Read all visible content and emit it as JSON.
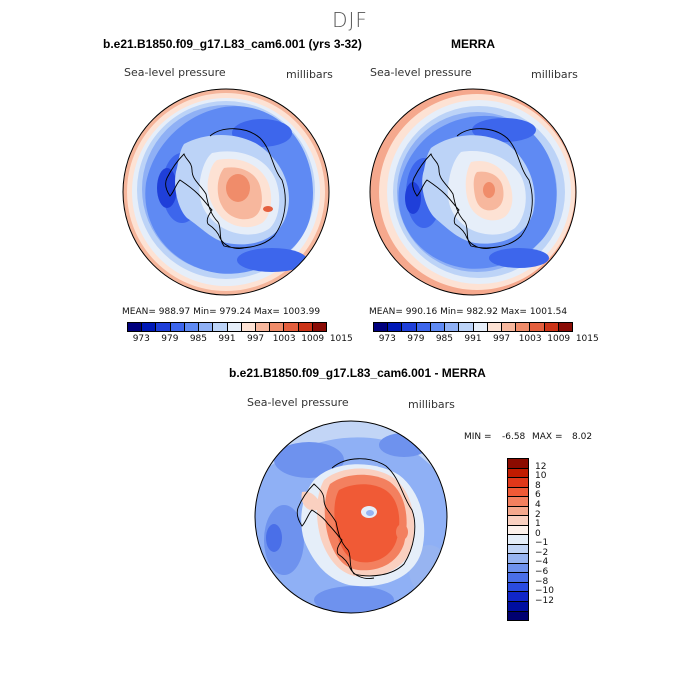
{
  "title": "DJF",
  "panels": [
    {
      "title": "b.e21.B1850.f09_g17.L83_cam6.001 (yrs 3-32)",
      "variable": "Sea-level pressure",
      "units": "millibars",
      "stats": "MEAN= 988.97   Min= 979.24   Max= 1003.99"
    },
    {
      "title": "MERRA",
      "variable": "Sea-level pressure",
      "units": "millibars",
      "stats": "MEAN= 990.16   Min= 982.92   Max= 1001.54"
    }
  ],
  "abs_colorbar": {
    "colors": [
      "#00007e",
      "#0019b7",
      "#1f3fd9",
      "#3d66ec",
      "#5f8af3",
      "#8fb0f5",
      "#bcd3f7",
      "#e6eef9",
      "#fde2d4",
      "#f7b79d",
      "#f08c6a",
      "#e45f3e",
      "#cc3418",
      "#8a0c06"
    ],
    "labels": [
      "973",
      "979",
      "985",
      "991",
      "997",
      "1003",
      "1009",
      "1015"
    ]
  },
  "diff_panel": {
    "title": "b.e21.B1850.f09_g17.L83_cam6.001 - MERRA",
    "variable": "Sea-level pressure",
    "units": "millibars",
    "min_label": "MIN =",
    "min_value": "-6.58",
    "max_label": "MAX =",
    "max_value": "8.02"
  },
  "diff_colorbar": {
    "colors": [
      "#8c0b00",
      "#c11b00",
      "#e0381a",
      "#f05a36",
      "#f3805f",
      "#f5a88d",
      "#fad0c0",
      "#fdf1eb",
      "#e5eef9",
      "#c2d5f6",
      "#97b4f1",
      "#6e92ee",
      "#4a6fe8",
      "#2a4be0",
      "#1126c9",
      "#000ea0",
      "#000070"
    ],
    "labels": [
      "12",
      "10",
      "8",
      "6",
      "4",
      "2",
      "1",
      "0",
      "−1",
      "−2",
      "−4",
      "−6",
      "−8",
      "−10",
      "−12"
    ]
  }
}
